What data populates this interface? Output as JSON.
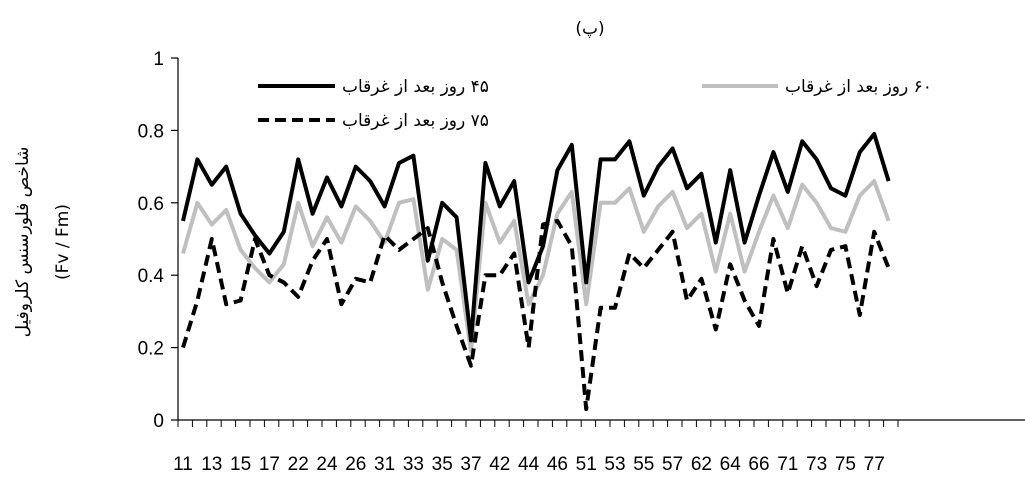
{
  "chart_data": {
    "type": "line",
    "title": "(پ)",
    "ylabel": "شاخص فلورسنس کلروفیل",
    "ylabel_formula": "(Fv / Fm)",
    "xlabel": "",
    "ylim": [
      0,
      1
    ],
    "yticks": [
      "0",
      "0.2",
      "0.4",
      "0.6",
      "0.8",
      "1"
    ],
    "x_tick_labels": [
      "11",
      "13",
      "15",
      "17",
      "22",
      "24",
      "26",
      "31",
      "33",
      "35",
      "37",
      "42",
      "44",
      "46",
      "51",
      "53",
      "55",
      "57",
      "62",
      "64",
      "66",
      "71",
      "73",
      "75",
      "77"
    ],
    "grid": false,
    "legend": "top",
    "series": [
      {
        "name": "۴۵ روز بعد از غرقاب",
        "color": "#000000",
        "style": "solid",
        "values": [
          0.55,
          0.72,
          0.65,
          0.7,
          0.57,
          0.51,
          0.46,
          0.52,
          0.72,
          0.57,
          0.67,
          0.59,
          0.7,
          0.66,
          0.59,
          0.71,
          0.73,
          0.44,
          0.6,
          0.56,
          0.22,
          0.71,
          0.59,
          0.66,
          0.38,
          0.48,
          0.69,
          0.76,
          0.38,
          0.72,
          0.72,
          0.77,
          0.62,
          0.7,
          0.75,
          0.64,
          0.68,
          0.49,
          0.69,
          0.49,
          0.62,
          0.74,
          0.63,
          0.77,
          0.72,
          0.64,
          0.62,
          0.74,
          0.79,
          0.66
        ]
      },
      {
        "name": "۶۰ روز بعد از غرقاب",
        "color": "#bfbfbf",
        "style": "solid",
        "values": [
          0.46,
          0.6,
          0.54,
          0.58,
          0.47,
          0.42,
          0.38,
          0.43,
          0.6,
          0.48,
          0.56,
          0.49,
          0.59,
          0.55,
          0.49,
          0.6,
          0.61,
          0.36,
          0.5,
          0.47,
          0.19,
          0.6,
          0.49,
          0.55,
          0.32,
          0.4,
          0.57,
          0.63,
          0.32,
          0.6,
          0.6,
          0.64,
          0.52,
          0.59,
          0.63,
          0.53,
          0.57,
          0.41,
          0.57,
          0.41,
          0.52,
          0.62,
          0.53,
          0.65,
          0.6,
          0.53,
          0.52,
          0.62,
          0.66,
          0.55
        ]
      },
      {
        "name": "۷۵ روز بعد از غرقاب",
        "color": "#000000",
        "style": "dashed",
        "values": [
          0.2,
          0.33,
          0.5,
          0.32,
          0.33,
          0.5,
          0.4,
          0.38,
          0.34,
          0.44,
          0.5,
          0.32,
          0.39,
          0.38,
          0.51,
          0.47,
          0.5,
          0.53,
          0.38,
          0.26,
          0.15,
          0.4,
          0.4,
          0.46,
          0.2,
          0.54,
          0.55,
          0.48,
          0.03,
          0.31,
          0.31,
          0.46,
          0.42,
          0.47,
          0.52,
          0.33,
          0.39,
          0.25,
          0.43,
          0.33,
          0.26,
          0.5,
          0.35,
          0.48,
          0.37,
          0.47,
          0.48,
          0.29,
          0.52,
          0.42
        ]
      }
    ]
  }
}
